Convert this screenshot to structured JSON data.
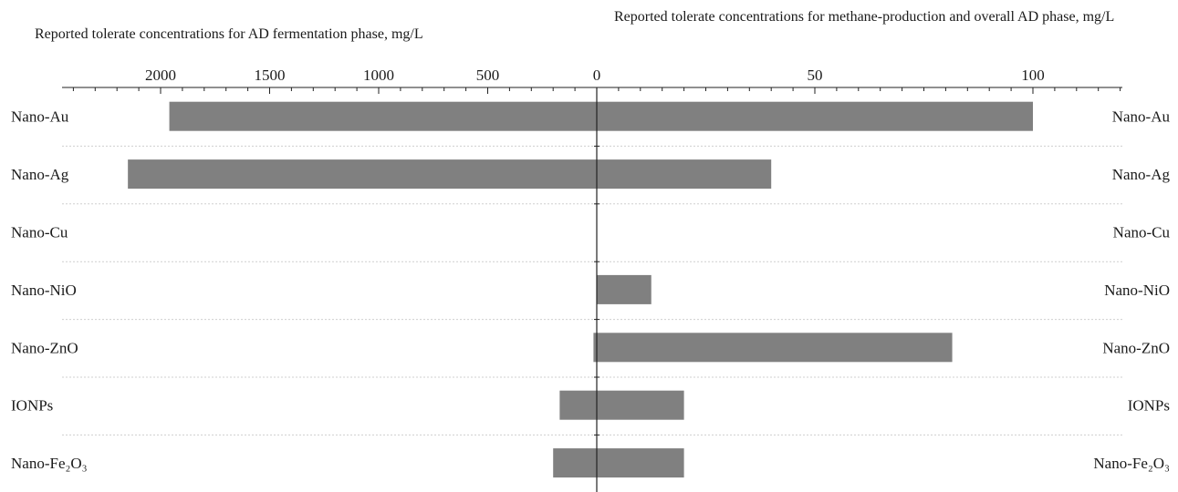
{
  "chart_data": {
    "type": "bar",
    "categories": [
      "Nano-Au",
      "Nano-Ag",
      "Nano-Cu",
      "Nano-NiO",
      "Nano-ZnO",
      "IONPs",
      "Nano-Fe₂O₃"
    ],
    "left_axis": {
      "title": "Reported tolerate concentrations for AD fermentation phase, mg/L",
      "ticks": [
        2000,
        1500,
        1000,
        500,
        0
      ],
      "range": [
        0,
        2450
      ]
    },
    "right_axis": {
      "title": "Reported tolerate concentrations for methane-production and overall AD phase, mg/L",
      "ticks": [
        0,
        50,
        100
      ],
      "range": [
        0,
        120
      ]
    },
    "series": [
      {
        "values": [
          1960,
          2150,
          0,
          0,
          15,
          170,
          200
        ]
      },
      {
        "values": [
          100,
          40,
          0,
          12.5,
          81.5,
          20,
          20
        ]
      }
    ],
    "bar_color": "#808080",
    "grid": "horizontal dotted separators"
  }
}
